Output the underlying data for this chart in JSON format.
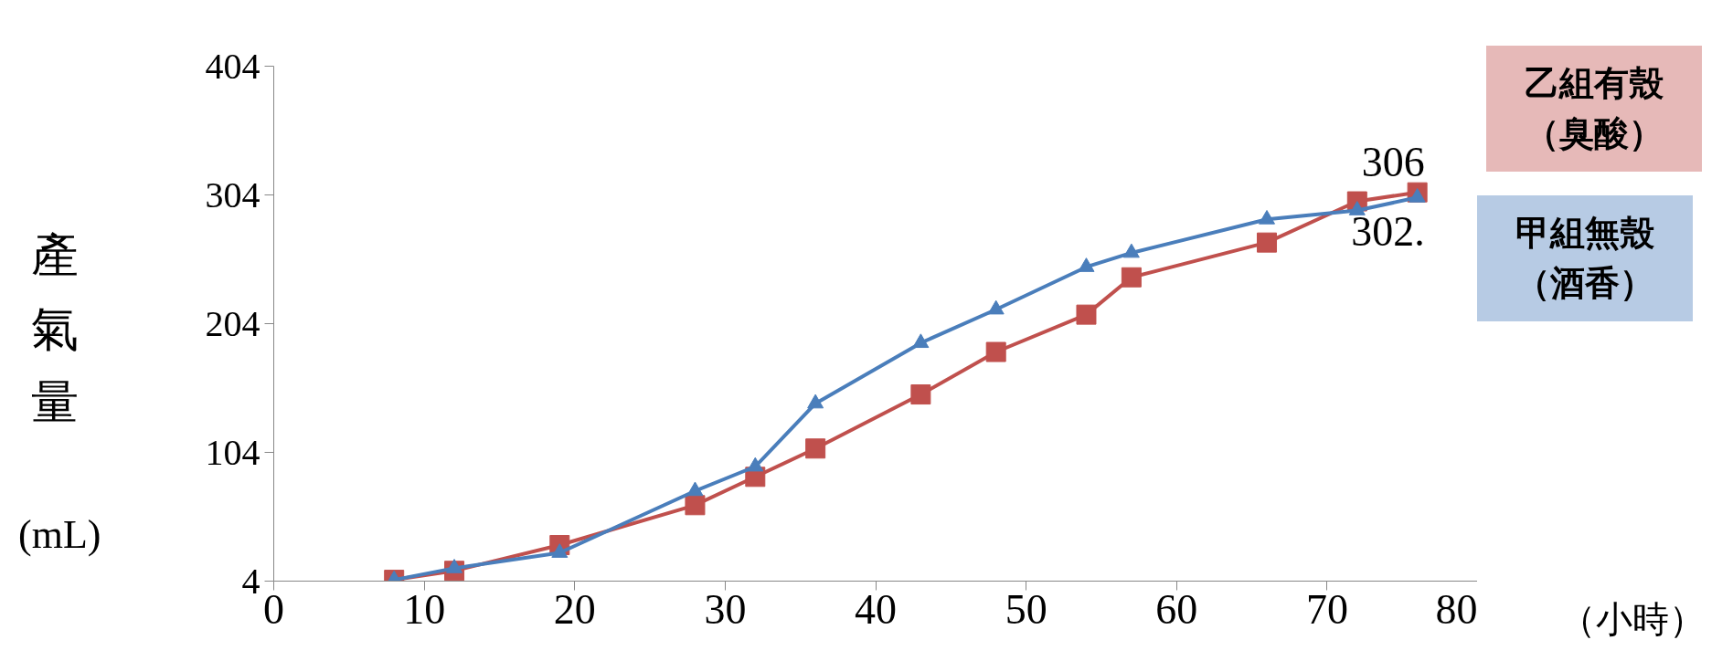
{
  "chart_data": {
    "type": "line",
    "ylabel": "產氣量(mL)",
    "xlabel": "（小時）",
    "xlim": [
      0,
      80
    ],
    "xticks": [
      0,
      10,
      20,
      30,
      40,
      50,
      60,
      70,
      80
    ],
    "ylim": [
      4,
      404
    ],
    "yticks": [
      4,
      104,
      204,
      304,
      404
    ],
    "grid": false,
    "line_style": "solid",
    "series": [
      {
        "name": "甲組無殼（酒香）",
        "color": "#4a7ebb",
        "marker": "triangle",
        "x": [
          8,
          12,
          19,
          28,
          32,
          36,
          43,
          48,
          54,
          57,
          66,
          72,
          76
        ],
        "values": [
          5,
          14,
          26,
          74,
          93,
          142,
          189,
          215,
          248,
          259,
          285,
          292,
          302
        ],
        "value_labels": [
          null,
          null,
          null,
          null,
          null,
          null,
          null,
          null,
          null,
          null,
          null,
          null,
          "302."
        ]
      },
      {
        "name": "乙組有殼（臭酸）",
        "color": "#c0504d",
        "marker": "square",
        "x": [
          8,
          12,
          19,
          28,
          32,
          36,
          43,
          48,
          54,
          57,
          66,
          72,
          76
        ],
        "values": [
          5,
          12,
          32,
          63,
          85,
          107,
          149,
          182,
          211,
          240,
          267,
          299,
          306
        ],
        "value_labels": [
          null,
          null,
          null,
          null,
          null,
          null,
          null,
          null,
          null,
          null,
          null,
          null,
          "306"
        ]
      }
    ]
  }
}
